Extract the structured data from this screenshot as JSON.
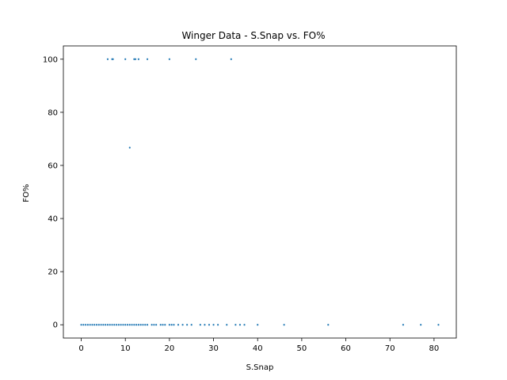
{
  "chart_data": {
    "type": "scatter",
    "title": "Winger Data - S.Snap vs. FO%",
    "xlabel": "S.Snap",
    "ylabel": "FO%",
    "xlim": [
      -4.05,
      85.05
    ],
    "ylim": [
      -5,
      105
    ],
    "xticks": [
      0,
      10,
      20,
      30,
      40,
      50,
      60,
      70,
      80
    ],
    "yticks": [
      0,
      20,
      40,
      60,
      80,
      100
    ],
    "grid": false,
    "marker_color": "#1f77b4",
    "points": [
      {
        "x": 0,
        "y": 0
      },
      {
        "x": 0.5,
        "y": 0
      },
      {
        "x": 1,
        "y": 0
      },
      {
        "x": 1.5,
        "y": 0
      },
      {
        "x": 2,
        "y": 0
      },
      {
        "x": 2.5,
        "y": 0
      },
      {
        "x": 3,
        "y": 0
      },
      {
        "x": 3.5,
        "y": 0
      },
      {
        "x": 4,
        "y": 0
      },
      {
        "x": 4.5,
        "y": 0
      },
      {
        "x": 5,
        "y": 0
      },
      {
        "x": 5.5,
        "y": 0
      },
      {
        "x": 6,
        "y": 0
      },
      {
        "x": 6.5,
        "y": 0
      },
      {
        "x": 7,
        "y": 0
      },
      {
        "x": 7.5,
        "y": 0
      },
      {
        "x": 8,
        "y": 0
      },
      {
        "x": 8.5,
        "y": 0
      },
      {
        "x": 9,
        "y": 0
      },
      {
        "x": 9.5,
        "y": 0
      },
      {
        "x": 10,
        "y": 0
      },
      {
        "x": 10.5,
        "y": 0
      },
      {
        "x": 11,
        "y": 0
      },
      {
        "x": 11.5,
        "y": 0
      },
      {
        "x": 12,
        "y": 0
      },
      {
        "x": 12.5,
        "y": 0
      },
      {
        "x": 13,
        "y": 0
      },
      {
        "x": 13.5,
        "y": 0
      },
      {
        "x": 14,
        "y": 0
      },
      {
        "x": 14.5,
        "y": 0
      },
      {
        "x": 15,
        "y": 0
      },
      {
        "x": 16,
        "y": 0
      },
      {
        "x": 16.5,
        "y": 0
      },
      {
        "x": 17,
        "y": 0
      },
      {
        "x": 18,
        "y": 0
      },
      {
        "x": 18.5,
        "y": 0
      },
      {
        "x": 19,
        "y": 0
      },
      {
        "x": 20,
        "y": 0
      },
      {
        "x": 20.5,
        "y": 0
      },
      {
        "x": 21,
        "y": 0
      },
      {
        "x": 22,
        "y": 0
      },
      {
        "x": 23,
        "y": 0
      },
      {
        "x": 24,
        "y": 0
      },
      {
        "x": 25,
        "y": 0
      },
      {
        "x": 27,
        "y": 0
      },
      {
        "x": 28,
        "y": 0
      },
      {
        "x": 29,
        "y": 0
      },
      {
        "x": 30,
        "y": 0
      },
      {
        "x": 31,
        "y": 0
      },
      {
        "x": 33,
        "y": 0
      },
      {
        "x": 35,
        "y": 0
      },
      {
        "x": 36,
        "y": 0
      },
      {
        "x": 37,
        "y": 0
      },
      {
        "x": 40,
        "y": 0
      },
      {
        "x": 46,
        "y": 0
      },
      {
        "x": 56,
        "y": 0
      },
      {
        "x": 73,
        "y": 0
      },
      {
        "x": 77,
        "y": 0
      },
      {
        "x": 81,
        "y": 0
      },
      {
        "x": 11,
        "y": 66.7
      },
      {
        "x": 6,
        "y": 100
      },
      {
        "x": 7,
        "y": 100
      },
      {
        "x": 7.2,
        "y": 100
      },
      {
        "x": 10,
        "y": 100
      },
      {
        "x": 12,
        "y": 100
      },
      {
        "x": 12.3,
        "y": 100
      },
      {
        "x": 13,
        "y": 100
      },
      {
        "x": 15,
        "y": 100
      },
      {
        "x": 20,
        "y": 100
      },
      {
        "x": 26,
        "y": 100
      },
      {
        "x": 34,
        "y": 100
      }
    ]
  }
}
